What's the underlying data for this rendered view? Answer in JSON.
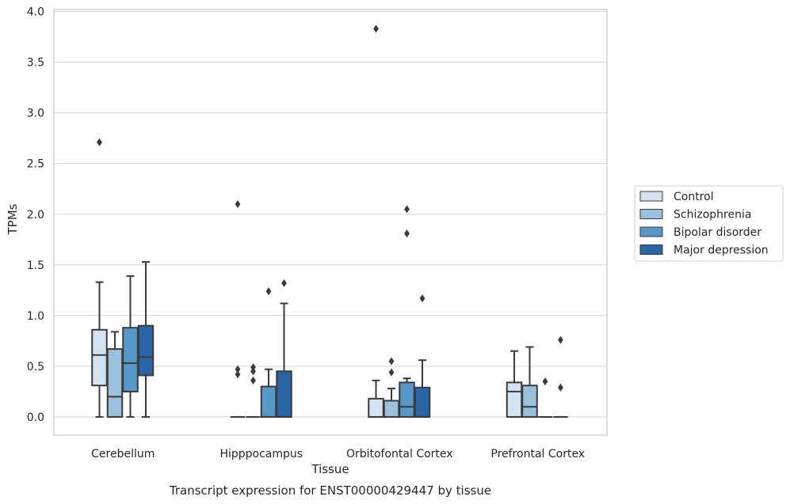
{
  "chart_data": {
    "type": "box",
    "caption": "Transcript expression for ENST00000429447 by tissue",
    "xlabel": "Tissue",
    "ylabel": "TPMs",
    "ylim": [
      -0.18,
      4.02
    ],
    "yticks": [
      "0.0",
      "0.5",
      "1.0",
      "1.5",
      "2.0",
      "2.5",
      "3.0",
      "3.5",
      "4.0"
    ],
    "grid": "horizontal",
    "legend_position": "right",
    "categories": [
      "Cerebellum",
      "Hipppocampus",
      "Orbitofontal Cortex",
      "Prefrontal Cortex"
    ],
    "series": [
      {
        "name": "Control",
        "color": "#d3e3f2",
        "boxes": [
          {
            "whislo": 0.0,
            "q1": 0.31,
            "med": 0.61,
            "q3": 0.86,
            "whishi": 1.33,
            "fliers": [
              2.71
            ]
          },
          {
            "whislo": 0.0,
            "q1": 0.0,
            "med": 0.0,
            "q3": 0.0,
            "whishi": 0.0,
            "fliers": [
              0.42,
              0.47,
              2.1
            ]
          },
          {
            "whislo": 0.0,
            "q1": 0.0,
            "med": 0.0,
            "q3": 0.18,
            "whishi": 0.36,
            "fliers": [
              3.83
            ]
          },
          {
            "whislo": 0.0,
            "q1": 0.0,
            "med": 0.25,
            "q3": 0.34,
            "whishi": 0.65,
            "fliers": []
          }
        ]
      },
      {
        "name": "Schizophrenia",
        "color": "#9ac1dc",
        "boxes": [
          {
            "whislo": 0.0,
            "q1": 0.0,
            "med": 0.2,
            "q3": 0.67,
            "whishi": 0.84,
            "fliers": []
          },
          {
            "whislo": 0.0,
            "q1": 0.0,
            "med": 0.0,
            "q3": 0.0,
            "whishi": 0.0,
            "fliers": [
              0.36,
              0.45,
              0.49
            ]
          },
          {
            "whislo": 0.0,
            "q1": 0.0,
            "med": 0.0,
            "q3": 0.16,
            "whishi": 0.28,
            "fliers": [
              0.44,
              0.55
            ]
          },
          {
            "whislo": 0.0,
            "q1": 0.0,
            "med": 0.1,
            "q3": 0.31,
            "whishi": 0.69,
            "fliers": []
          }
        ]
      },
      {
        "name": "Bipolar disorder",
        "color": "#5898c8",
        "boxes": [
          {
            "whislo": 0.0,
            "q1": 0.25,
            "med": 0.53,
            "q3": 0.88,
            "whishi": 1.39,
            "fliers": []
          },
          {
            "whislo": 0.0,
            "q1": 0.0,
            "med": 0.0,
            "q3": 0.3,
            "whishi": 0.47,
            "fliers": [
              1.24
            ]
          },
          {
            "whislo": 0.0,
            "q1": 0.0,
            "med": 0.1,
            "q3": 0.34,
            "whishi": 0.38,
            "fliers": [
              1.81,
              2.05
            ]
          },
          {
            "whislo": 0.0,
            "q1": 0.0,
            "med": 0.0,
            "q3": 0.0,
            "whishi": 0.0,
            "fliers": [
              0.35
            ]
          }
        ]
      },
      {
        "name": "Major depression",
        "color": "#2a65a5",
        "boxes": [
          {
            "whislo": 0.0,
            "q1": 0.41,
            "med": 0.59,
            "q3": 0.9,
            "whishi": 1.53,
            "fliers": []
          },
          {
            "whislo": 0.0,
            "q1": 0.0,
            "med": 0.0,
            "q3": 0.45,
            "whishi": 1.12,
            "fliers": [
              1.32
            ]
          },
          {
            "whislo": 0.0,
            "q1": 0.0,
            "med": 0.0,
            "q3": 0.29,
            "whishi": 0.56,
            "fliers": [
              1.17
            ]
          },
          {
            "whislo": 0.0,
            "q1": 0.0,
            "med": 0.0,
            "q3": 0.0,
            "whishi": 0.0,
            "fliers": [
              0.29,
              0.76
            ]
          }
        ]
      }
    ]
  }
}
